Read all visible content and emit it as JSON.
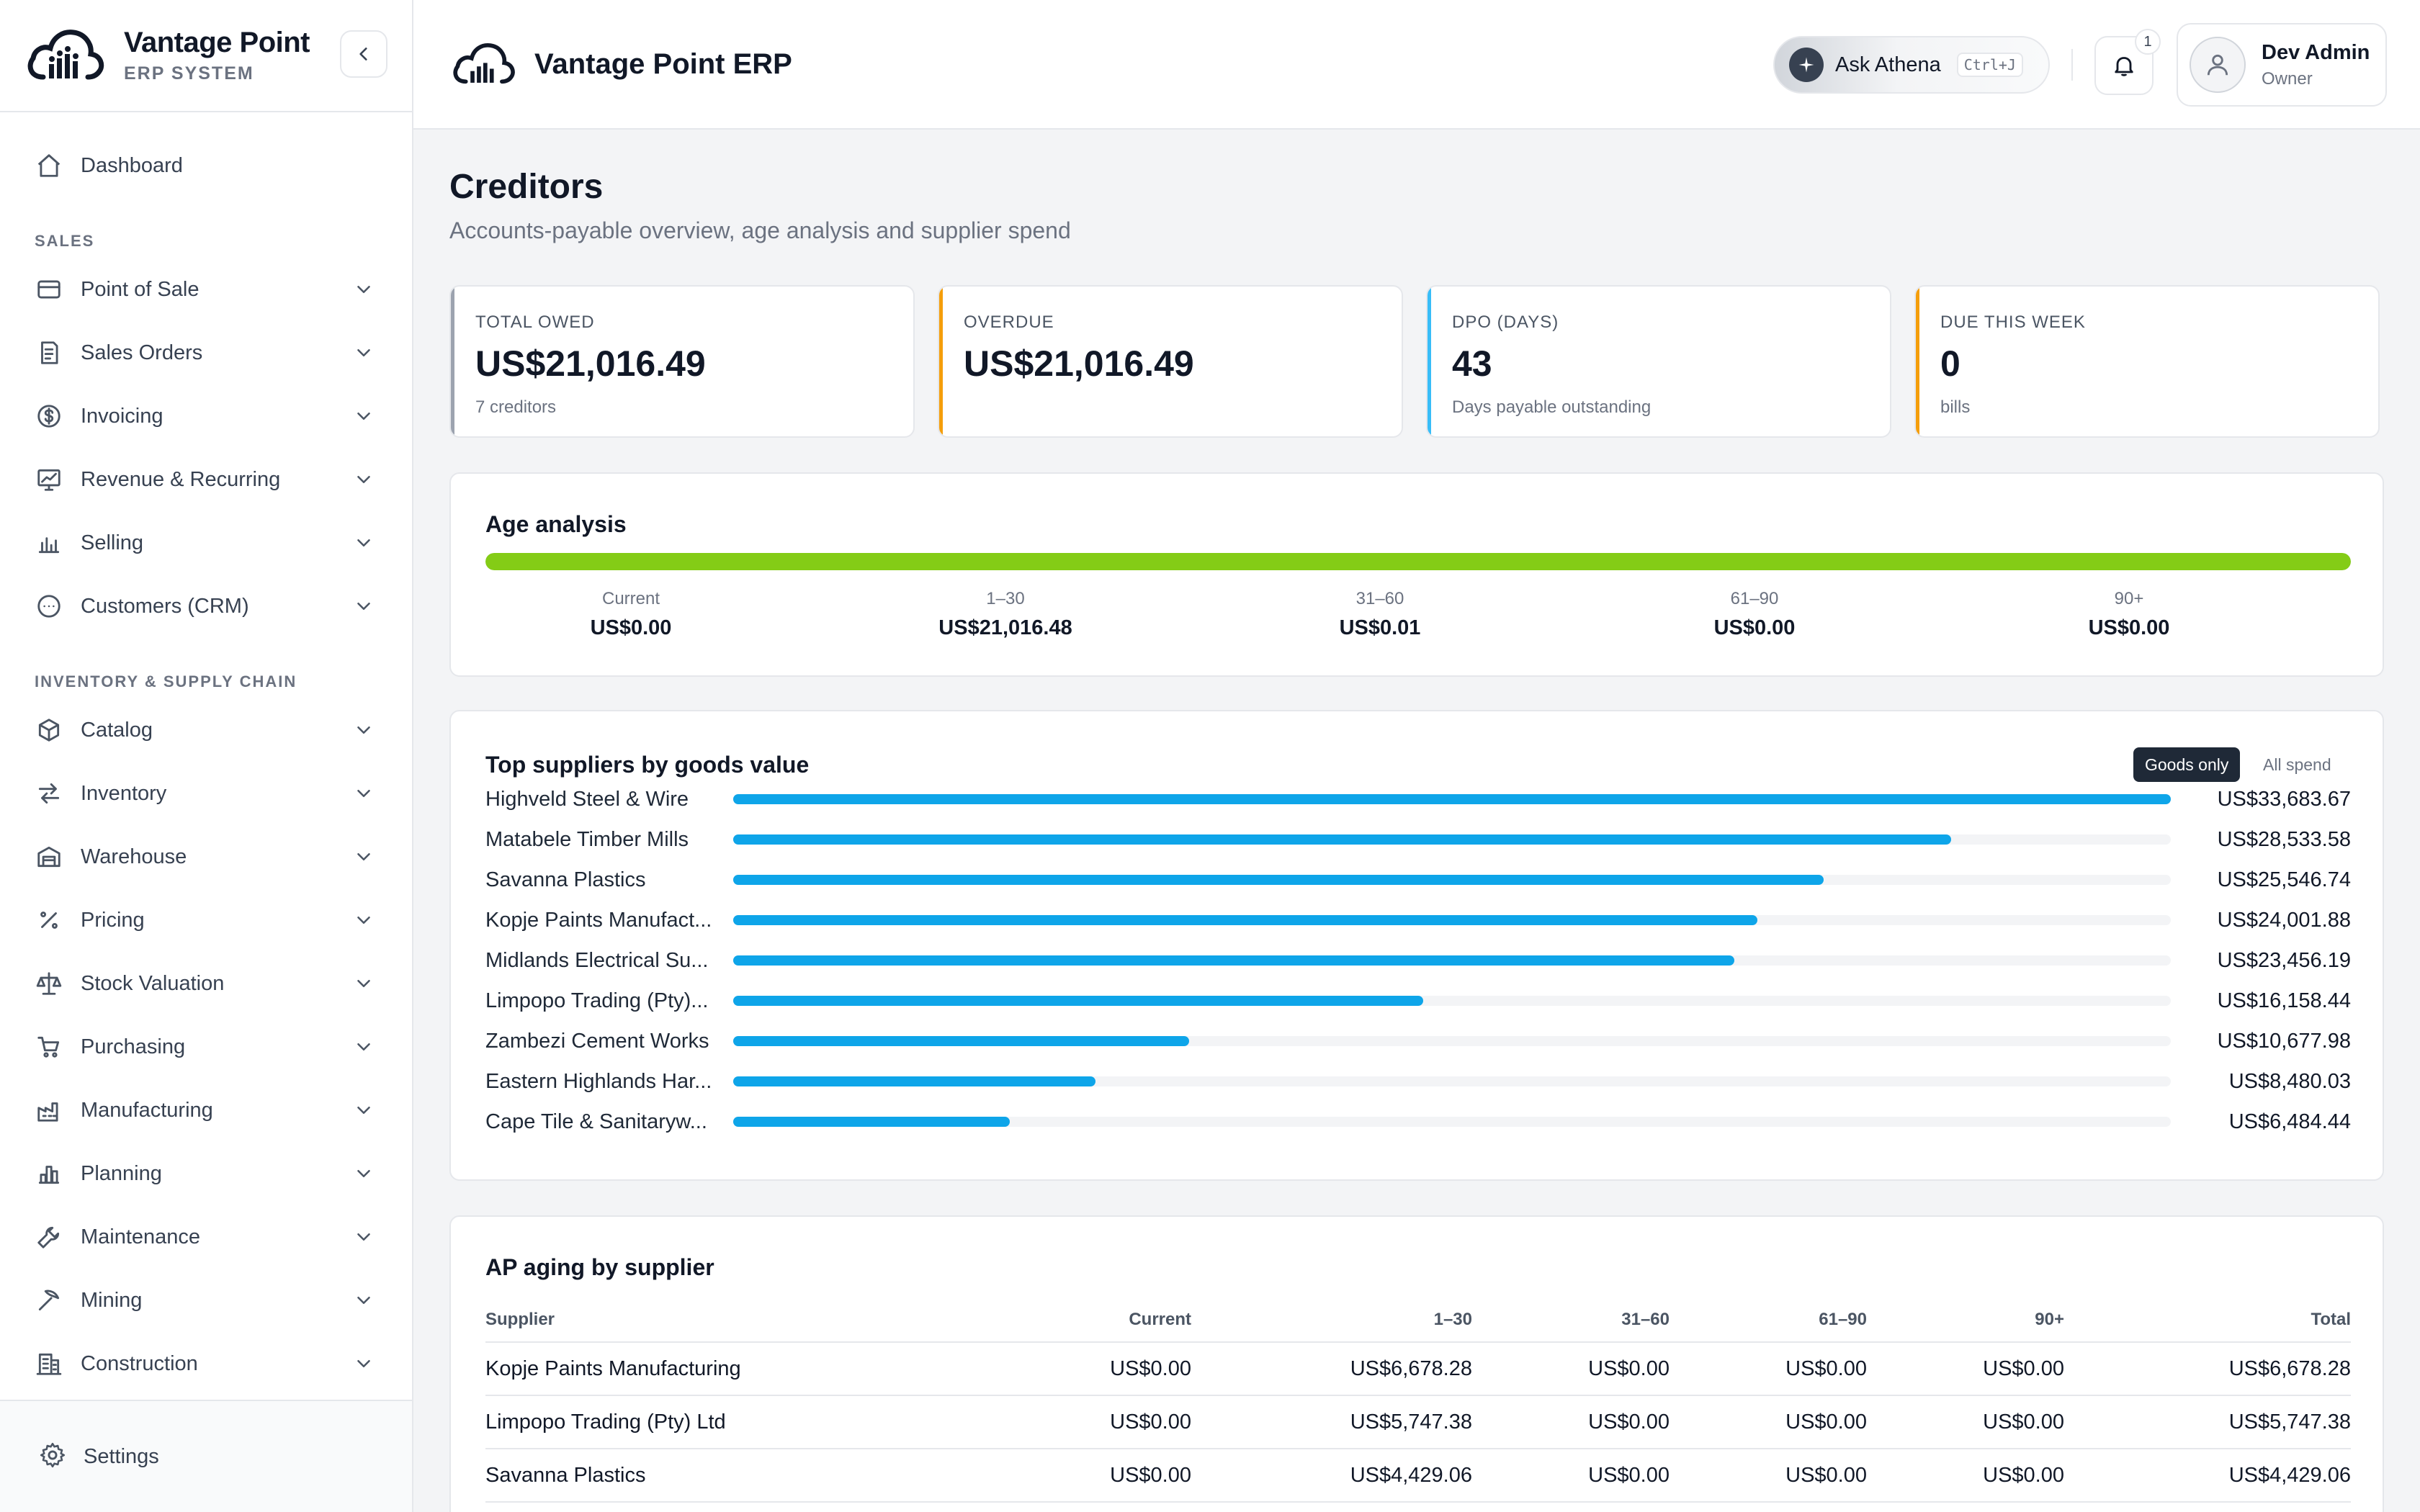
{
  "brand": {
    "name": "Vantage Point",
    "subtitle": "ERP SYSTEM"
  },
  "header": {
    "title": "Vantage Point ERP",
    "ask": {
      "label": "Ask Athena",
      "shortcut": "Ctrl+J"
    },
    "notifications": {
      "count": "1"
    },
    "user": {
      "name": "Dev Admin",
      "role": "Owner"
    }
  },
  "sidebar": {
    "dashboard": "Dashboard",
    "sections": [
      {
        "title": "SALES",
        "items": [
          {
            "label": "Point of Sale",
            "icon": "card-icon"
          },
          {
            "label": "Sales Orders",
            "icon": "receipt-icon"
          },
          {
            "label": "Invoicing",
            "icon": "dollar-icon"
          },
          {
            "label": "Revenue & Recurring",
            "icon": "trend-icon"
          },
          {
            "label": "Selling",
            "icon": "bar-chart-icon"
          },
          {
            "label": "Customers (CRM)",
            "icon": "chat-icon"
          }
        ]
      },
      {
        "title": "INVENTORY & SUPPLY CHAIN",
        "items": [
          {
            "label": "Catalog",
            "icon": "box-icon"
          },
          {
            "label": "Inventory",
            "icon": "arrows-icon"
          },
          {
            "label": "Warehouse",
            "icon": "warehouse-icon"
          },
          {
            "label": "Pricing",
            "icon": "percent-icon"
          },
          {
            "label": "Stock Valuation",
            "icon": "scale-icon"
          },
          {
            "label": "Purchasing",
            "icon": "cart-icon"
          },
          {
            "label": "Manufacturing",
            "icon": "factory-icon"
          },
          {
            "label": "Planning",
            "icon": "chart-columns-icon"
          },
          {
            "label": "Maintenance",
            "icon": "wrench-icon"
          },
          {
            "label": "Mining",
            "icon": "pickaxe-icon"
          },
          {
            "label": "Construction",
            "icon": "building-icon"
          }
        ]
      }
    ],
    "settings": "Settings"
  },
  "page": {
    "title": "Creditors",
    "subtitle": "Accounts-payable overview, age analysis and supplier spend"
  },
  "kpis": [
    {
      "label": "TOTAL OWED",
      "value": "US$21,016.49",
      "note": "7 creditors",
      "accent": "#9ca3af"
    },
    {
      "label": "OVERDUE",
      "value": "US$21,016.49",
      "note": "",
      "accent": "#f59e0b"
    },
    {
      "label": "DPO (DAYS)",
      "value": "43",
      "note": "Days payable outstanding",
      "accent": "#38bdf8"
    },
    {
      "label": "DUE THIS WEEK",
      "value": "0",
      "note": "bills",
      "accent": "#f59e0b"
    }
  ],
  "age_analysis": {
    "title": "Age analysis",
    "bar_fill_percent": 100,
    "bar_color": "#84cc16",
    "buckets": [
      {
        "label": "Current",
        "value": "US$0.00"
      },
      {
        "label": "1–30",
        "value": "US$21,016.48"
      },
      {
        "label": "31–60",
        "value": "US$0.01"
      },
      {
        "label": "61–90",
        "value": "US$0.00"
      },
      {
        "label": "90+",
        "value": "US$0.00"
      }
    ]
  },
  "top_suppliers": {
    "title": "Top suppliers by goods value",
    "toggle_active": "Goods only",
    "toggle_inactive": "All spend",
    "bar_color": "#0ea5e9",
    "max_value": 33683.67,
    "items": [
      {
        "name": "Highveld Steel & Wire",
        "value": 33683.67,
        "display": "US$33,683.67"
      },
      {
        "name": "Matabele Timber Mills",
        "value": 28533.58,
        "display": "US$28,533.58"
      },
      {
        "name": "Savanna Plastics",
        "value": 25546.74,
        "display": "US$25,546.74"
      },
      {
        "name": "Kopje Paints Manufact...",
        "value": 24001.88,
        "display": "US$24,001.88"
      },
      {
        "name": "Midlands Electrical Su...",
        "value": 23456.19,
        "display": "US$23,456.19"
      },
      {
        "name": "Limpopo Trading (Pty)...",
        "value": 16158.44,
        "display": "US$16,158.44"
      },
      {
        "name": "Zambezi Cement Works",
        "value": 10677.98,
        "display": "US$10,677.98"
      },
      {
        "name": "Eastern Highlands Har...",
        "value": 8480.03,
        "display": "US$8,480.03"
      },
      {
        "name": "Cape Tile & Sanitaryw...",
        "value": 6484.44,
        "display": "US$6,484.44"
      }
    ]
  },
  "ap_aging": {
    "title": "AP aging by supplier",
    "columns": [
      "Supplier",
      "Current",
      "1–30",
      "31–60",
      "61–90",
      "90+",
      "Total"
    ],
    "rows": [
      [
        "Kopje Paints Manufacturing",
        "US$0.00",
        "US$6,678.28",
        "US$0.00",
        "US$0.00",
        "US$0.00",
        "US$6,678.28"
      ],
      [
        "Limpopo Trading (Pty) Ltd",
        "US$0.00",
        "US$5,747.38",
        "US$0.00",
        "US$0.00",
        "US$0.00",
        "US$5,747.38"
      ],
      [
        "Savanna Plastics",
        "US$0.00",
        "US$4,429.06",
        "US$0.00",
        "US$0.00",
        "US$0.00",
        "US$4,429.06"
      ]
    ]
  }
}
